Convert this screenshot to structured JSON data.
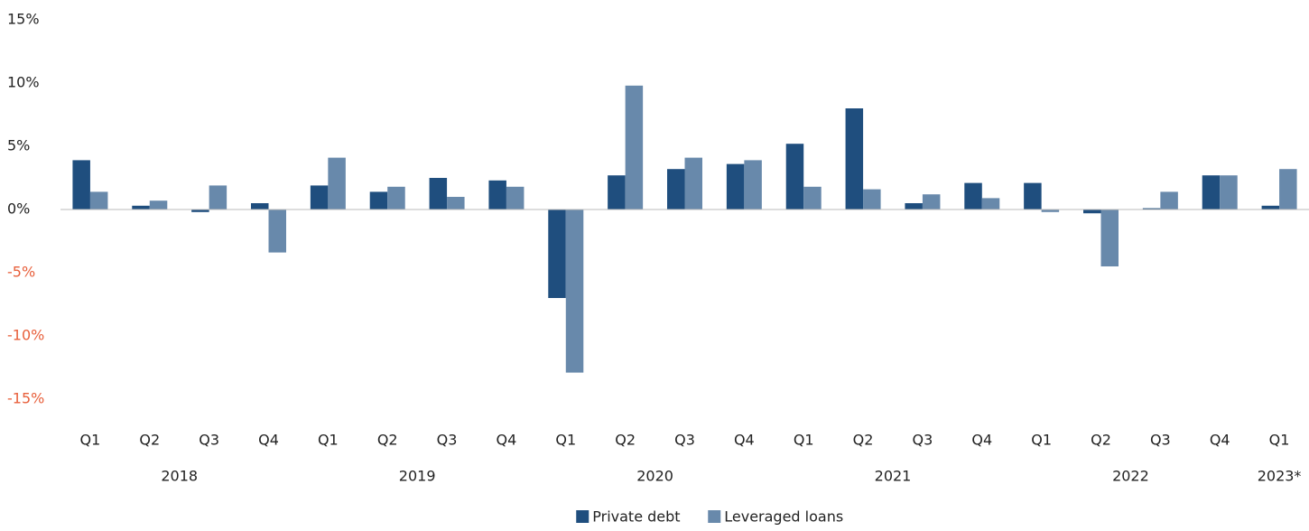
{
  "chart_data": {
    "type": "bar",
    "categories": [
      "Q1",
      "Q2",
      "Q3",
      "Q4",
      "Q1",
      "Q2",
      "Q3",
      "Q4",
      "Q1",
      "Q2",
      "Q3",
      "Q4",
      "Q1",
      "Q2",
      "Q3",
      "Q4",
      "Q1",
      "Q2",
      "Q3",
      "Q4",
      "Q1"
    ],
    "group_labels": [
      "2018",
      "2019",
      "2020",
      "2021",
      "2022",
      "2023*"
    ],
    "series": [
      {
        "name": "Private debt",
        "color": "#1f4e7e",
        "values": [
          3.9,
          0.3,
          -0.2,
          0.5,
          1.9,
          1.4,
          2.5,
          2.3,
          -7.0,
          2.7,
          3.2,
          3.6,
          5.2,
          8.0,
          0.5,
          2.1,
          2.1,
          -0.3,
          0.1,
          2.7,
          0.3
        ]
      },
      {
        "name": "Leveraged loans",
        "color": "#6889ab",
        "values": [
          1.4,
          0.7,
          1.9,
          -3.4,
          4.1,
          1.8,
          1.0,
          1.8,
          -12.9,
          9.8,
          4.1,
          3.9,
          1.8,
          1.6,
          1.2,
          0.9,
          -0.2,
          -4.5,
          1.4,
          2.7,
          3.2
        ]
      }
    ],
    "ylim": [
      -15,
      15
    ],
    "yticks": [
      {
        "value": 15,
        "label": "15%"
      },
      {
        "value": 10,
        "label": "10%"
      },
      {
        "value": 5,
        "label": "5%"
      },
      {
        "value": 0,
        "label": "0%"
      },
      {
        "value": -5,
        "label": "-5%"
      },
      {
        "value": -10,
        "label": "-10%"
      },
      {
        "value": -15,
        "label": "-15%"
      }
    ],
    "negative_tick_color": "#e8603c",
    "legend": "bottom"
  }
}
